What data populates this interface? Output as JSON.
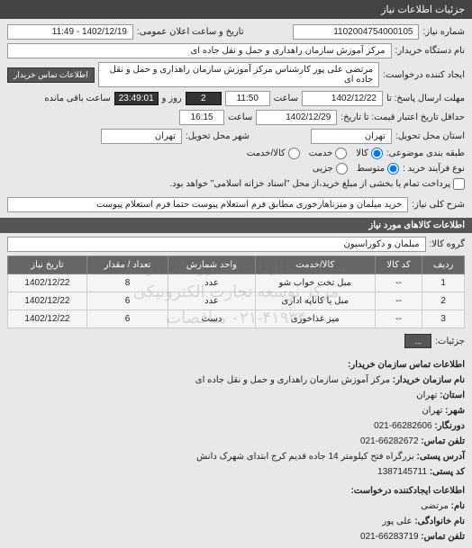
{
  "header": {
    "title": "جزئیات اطلاعات نیاز"
  },
  "fields": {
    "req_no_label": "شماره نیاز:",
    "req_no": "1102004754000105",
    "pub_date_label": "تاریخ و ساعت اعلان عمومی:",
    "pub_date": "1402/12/19 - 11:49",
    "buyer_org_label": "نام دستگاه خریدار:",
    "buyer_org": "مرکز آموزش سازمان راهداری و حمل و نقل جاده ای",
    "requester_label": "ایجاد کننده درخواست:",
    "requester": "مرتضی علی پور کارشناس مرکز آموزش سازمان راهداری و حمل و نقل جاده ای",
    "contact_btn": "اطلاعات تماس خریدار",
    "deadline_reply_label": "مهلت ارسال پاسخ: تا",
    "deadline_reply_date": "1402/12/22",
    "deadline_reply_time_label": "ساعت",
    "deadline_reply_time": "11:50",
    "countdown_days": "2",
    "countdown_days_label": "روز و",
    "countdown_time": "23:49:01",
    "countdown_time_label": "ساعت باقی مانده",
    "deadline_price_label": "حداقل تاریخ اعتبار قیمت: تا تاریخ:",
    "deadline_price_date": "1402/12/29",
    "deadline_price_time_label": "ساعت",
    "deadline_price_time": "16:15",
    "delivery_prov_label": "استان محل تحویل:",
    "delivery_prov": "تهران",
    "delivery_city_label": "شهر محل تحویل:",
    "delivery_city": "تهران",
    "budget_type_label": "طبقه بندی موضوعی:",
    "budget_opts": [
      "کالا",
      "خدمت",
      "کالا/خدمت"
    ],
    "budget_selected": 0,
    "purchase_type_label": "نوع فرآیند خرید :",
    "purchase_opts": [
      "متوسط",
      "جزیی"
    ],
    "purchase_selected": 0,
    "payment_checkbox_label": "پرداخت تمام یا بخشی از مبلغ خرید،از محل \"اسناد خزانه اسلامی\" خواهد بود.",
    "payment_checked": false,
    "general_desc_label": "شرح کلی نیاز:",
    "general_desc": "خرید میلمان و میزناهارخوری مطابق فرم استعلام پیوست حتما فرم استعلام پیوست"
  },
  "items_section": {
    "title": "اطلاعات کالاهای مورد نیاز",
    "group_label": "گروه کالا:",
    "group_value": "مبلمان و دکوراسیون",
    "columns": [
      "ردیف",
      "کد کالا",
      "کالا/خدمت",
      "واحد شمارش",
      "تعداد / مقدار",
      "تاریخ نیاز"
    ],
    "rows": [
      [
        "1",
        "--",
        "مبل تخت خواب شو",
        "عدد",
        "8",
        "1402/12/22"
      ],
      [
        "2",
        "--",
        "مبل یا کاناپه اداری",
        "عدد",
        "6",
        "1402/12/22"
      ],
      [
        "3",
        "--",
        "میز غذاخوری",
        "دست",
        "6",
        "1402/12/22"
      ]
    ],
    "watermark_line1": "سامانه تدارکات الکترونیکی دولت",
    "watermark_line2": "مرکز توسعه تجارت الکترونیکی",
    "watermark_line3": "۰۲۱-۴۱۹۳۴ مناقصات",
    "viewmore_label": "جزئیات:",
    "viewmore_btn": "..."
  },
  "contact_section": {
    "title1": "اطلاعات تماس سازمان خریدار:",
    "rows1": [
      [
        "نام سازمان خریدار:",
        "مرکز آموزش سازمان راهداری و حمل و نقل جاده ای"
      ],
      [
        "استان:",
        "تهران"
      ],
      [
        "شهر:",
        "تهران"
      ],
      [
        "دورنگار:",
        "66282606-021"
      ],
      [
        "تلفن تماس:",
        "66282672-021"
      ],
      [
        "آدرس پستی:",
        "بزرگراه فتح کیلومتر 14 جاده قدیم کرج ابتدای شهرک دانش"
      ],
      [
        "کد پستی:",
        "1387145711"
      ]
    ],
    "title2": "اطلاعات ایجادکننده درخواست:",
    "rows2": [
      [
        "نام:",
        "مرتضی"
      ],
      [
        "نام خانوادگی:",
        "علی پور"
      ],
      [
        "تلفن تماس:",
        "66283719-021"
      ]
    ]
  }
}
